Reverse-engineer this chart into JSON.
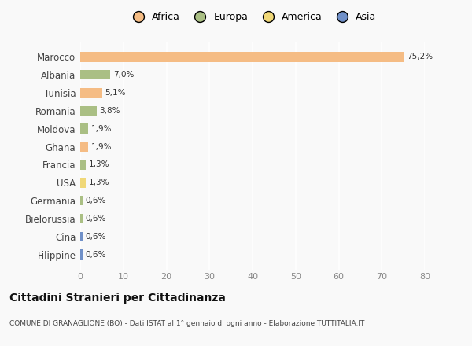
{
  "countries": [
    "Marocco",
    "Albania",
    "Tunisia",
    "Romania",
    "Moldova",
    "Ghana",
    "Francia",
    "USA",
    "Germania",
    "Bielorussia",
    "Cina",
    "Filippine"
  ],
  "values": [
    75.2,
    7.0,
    5.1,
    3.8,
    1.9,
    1.9,
    1.3,
    1.3,
    0.6,
    0.6,
    0.6,
    0.6
  ],
  "labels": [
    "75,2%",
    "7,0%",
    "5,1%",
    "3,8%",
    "1,9%",
    "1,9%",
    "1,3%",
    "1,3%",
    "0,6%",
    "0,6%",
    "0,6%",
    "0,6%"
  ],
  "continents": [
    "Africa",
    "Europa",
    "Africa",
    "Europa",
    "Europa",
    "Africa",
    "Europa",
    "America",
    "Europa",
    "Europa",
    "Asia",
    "Asia"
  ],
  "continent_colors": {
    "Africa": "#F5BC84",
    "Europa": "#AABF84",
    "America": "#F0D878",
    "Asia": "#7090C8"
  },
  "legend_labels": [
    "Africa",
    "Europa",
    "America",
    "Asia"
  ],
  "legend_colors": [
    "#F5BC84",
    "#AABF84",
    "#F0D878",
    "#7090C8"
  ],
  "xlim": [
    0,
    80
  ],
  "xticks": [
    0,
    10,
    20,
    30,
    40,
    50,
    60,
    70,
    80
  ],
  "title_main": "Cittadini Stranieri per Cittadinanza",
  "title_sub": "COMUNE DI GRANAGLIONE (BO) - Dati ISTAT al 1° gennaio di ogni anno - Elaborazione TUTTITALIA.IT",
  "background_color": "#f9f9f9",
  "grid_color": "#ffffff",
  "bar_height": 0.55
}
